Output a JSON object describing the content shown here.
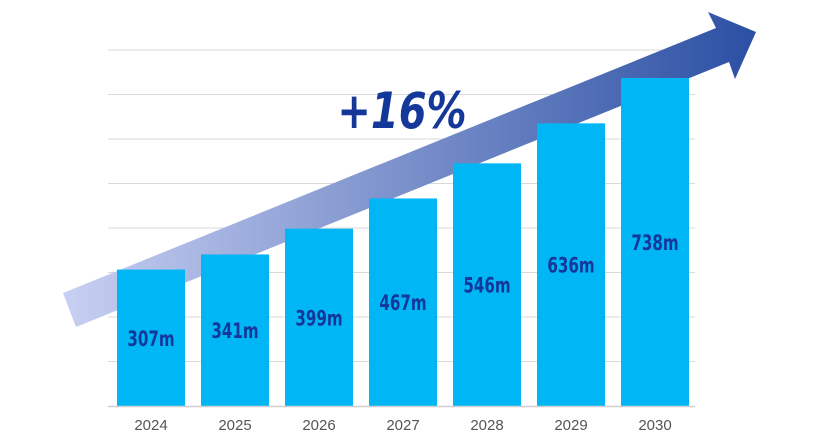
{
  "chart_data": {
    "type": "bar",
    "categories": [
      "2024",
      "2025",
      "2026",
      "2027",
      "2028",
      "2029",
      "2030"
    ],
    "values": [
      307,
      341,
      399,
      467,
      546,
      636,
      738
    ],
    "data_labels": [
      "307m",
      "341m",
      "399m",
      "467m",
      "546m",
      "636m",
      "738m"
    ],
    "title": "",
    "xlabel": "",
    "ylabel": "",
    "ylim": [
      0,
      800
    ],
    "grid": true,
    "annotation": "+16%",
    "colors": {
      "bar": "#00b6f5",
      "label": "#14379a",
      "arrow_start": "#c8d0f2",
      "arrow_end": "#2b4fa3",
      "grid": "#d9d9d9"
    }
  }
}
